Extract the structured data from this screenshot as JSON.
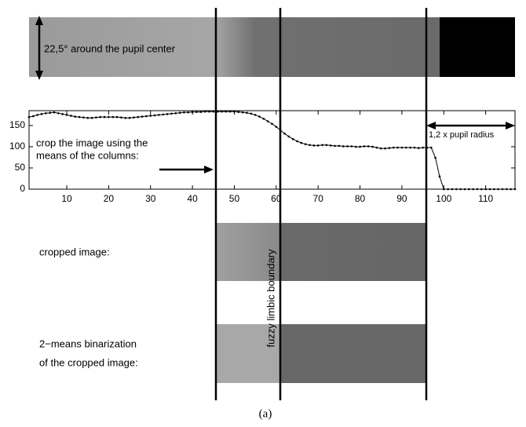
{
  "chart_data": {
    "type": "line",
    "color": "#000000",
    "x": [
      1,
      2,
      3,
      4,
      5,
      6,
      7,
      8,
      9,
      10,
      11,
      12,
      13,
      14,
      15,
      16,
      17,
      18,
      19,
      20,
      21,
      22,
      23,
      24,
      25,
      26,
      27,
      28,
      29,
      30,
      31,
      32,
      33,
      34,
      35,
      36,
      37,
      38,
      39,
      40,
      41,
      42,
      43,
      44,
      45,
      46,
      47,
      48,
      49,
      50,
      51,
      52,
      53,
      54,
      55,
      56,
      57,
      58,
      59,
      60,
      61,
      62,
      63,
      64,
      65,
      66,
      67,
      68,
      69,
      70,
      71,
      72,
      73,
      74,
      75,
      76,
      77,
      78,
      79,
      80,
      81,
      82,
      83,
      84,
      85,
      86,
      87,
      88,
      89,
      90,
      91,
      92,
      93,
      94,
      95,
      96,
      97,
      98,
      99,
      100,
      101,
      102,
      103,
      104,
      105,
      106,
      107,
      108,
      109,
      110,
      111,
      112,
      113,
      114,
      115,
      116,
      117
    ],
    "values": [
      170,
      172,
      175,
      177,
      179,
      180,
      181,
      179,
      177,
      175,
      173,
      171,
      170,
      169,
      168,
      168,
      169,
      170,
      170,
      170,
      170,
      170,
      169,
      168,
      168,
      169,
      170,
      171,
      172,
      173,
      174,
      175,
      176,
      177,
      178,
      179,
      180,
      181,
      181,
      182,
      182,
      182,
      183,
      183,
      183,
      183,
      183,
      183,
      183,
      183,
      182,
      181,
      180,
      178,
      175,
      171,
      166,
      160,
      154,
      147,
      139,
      131,
      124,
      118,
      113,
      109,
      106,
      104,
      103,
      103,
      104,
      104,
      103,
      102,
      102,
      101,
      101,
      101,
      100,
      100,
      101,
      101,
      100,
      98,
      96,
      96,
      97,
      98,
      98,
      98,
      98,
      98,
      98,
      97,
      98,
      98,
      98,
      74,
      30,
      0,
      0,
      0,
      0,
      0,
      0,
      0,
      0,
      0,
      0,
      0,
      0,
      0,
      0,
      0,
      0,
      0,
      0
    ],
    "xlim": [
      1,
      117
    ],
    "ylim": [
      0,
      185
    ],
    "xticks": [
      10,
      20,
      30,
      40,
      50,
      60,
      70,
      80,
      90,
      100,
      110
    ],
    "yticks": [
      0,
      50,
      100,
      150
    ]
  },
  "figure": {
    "image_label": "22,5° around the pupil center",
    "crop_note": [
      "crop the image using the",
      "means of the columns:"
    ],
    "radius_label": "1,2 x pupil radius",
    "cropped_label": "cropped image:",
    "boundary_label": "fuzzy limbic boundary",
    "binarization_label": [
      "2−means binarization",
      "of the cropped image:"
    ],
    "caption": "(a)"
  }
}
